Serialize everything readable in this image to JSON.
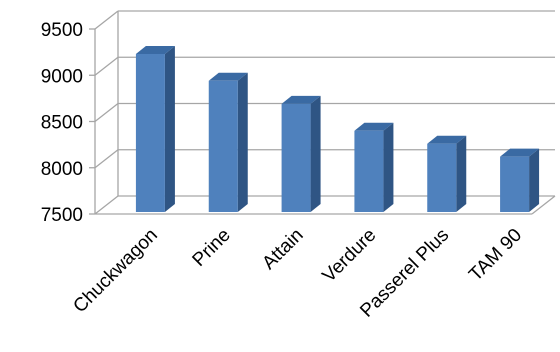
{
  "chart_data": {
    "type": "bar",
    "style": "3d-column",
    "categories": [
      "Chuckwagon",
      "Prine",
      "Attain",
      "Verdure",
      "Passerel Plus",
      "TAM 90"
    ],
    "values": [
      9230,
      8940,
      8690,
      8400,
      8260,
      8120
    ],
    "title": "",
    "xlabel": "",
    "ylabel": "",
    "ylim": [
      7500,
      9500
    ],
    "yticks": [
      7500,
      8000,
      8500,
      9000,
      9500
    ],
    "grid": true,
    "legend": "none",
    "colors": {
      "bar_front": "#4f81bd",
      "bar_top": "#3a6aa3",
      "bar_side": "#2f5584",
      "gridline": "#a6a6a6"
    }
  }
}
